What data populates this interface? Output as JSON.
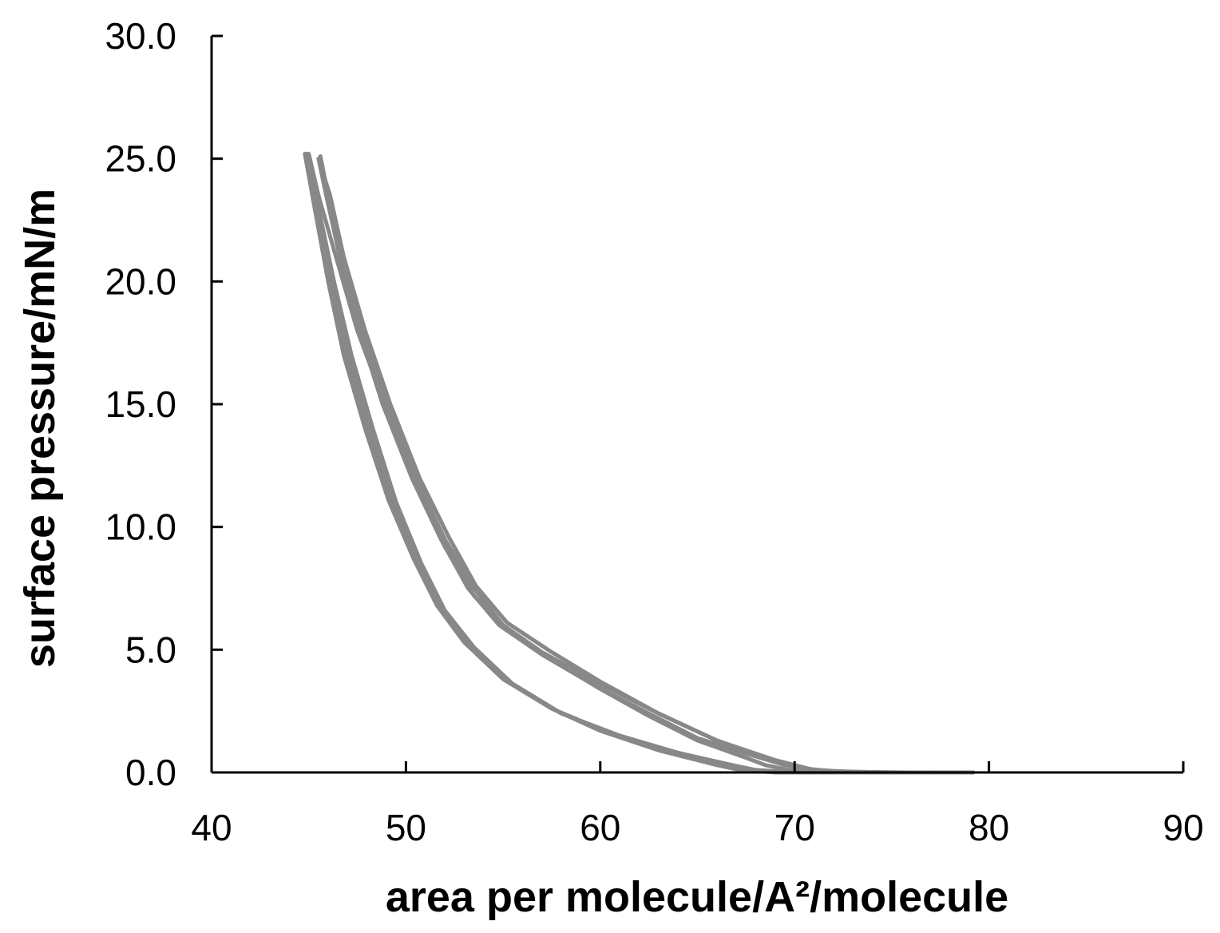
{
  "chart_data": {
    "type": "line",
    "title": "",
    "xlabel": "area per molecule/A²/molecule",
    "ylabel": "surface pressure/mN/m",
    "xlim": [
      40,
      90
    ],
    "ylim": [
      0,
      30
    ],
    "x_ticks": [
      40,
      50,
      60,
      70,
      80,
      90
    ],
    "y_ticks": [
      0,
      5,
      10,
      15,
      20,
      25,
      30
    ],
    "x_tick_labels": [
      "40",
      "50",
      "60",
      "70",
      "80",
      "90"
    ],
    "y_tick_labels": [
      "0.0",
      "5.0",
      "10.0",
      "15.0",
      "20.0",
      "25.0",
      "30.0"
    ],
    "grid": false,
    "legend": "none",
    "line_color": "#888888",
    "axis_color": "#000000",
    "series": [
      {
        "points": [
          [
            79.2,
            0
          ],
          [
            76,
            0
          ],
          [
            73,
            0.02
          ],
          [
            71,
            0.1
          ],
          [
            69,
            0.5
          ],
          [
            66,
            1.3
          ],
          [
            63,
            2.4
          ],
          [
            60,
            3.6
          ],
          [
            57,
            4.9
          ],
          [
            55,
            6
          ],
          [
            53.5,
            7.5
          ],
          [
            52,
            9.5
          ],
          [
            50.5,
            12
          ],
          [
            49,
            15
          ],
          [
            47.8,
            18
          ],
          [
            46.8,
            21
          ],
          [
            46,
            23.5
          ],
          [
            45.6,
            25.1
          ]
        ]
      },
      {
        "points": [
          [
            79,
            0
          ],
          [
            75,
            0
          ],
          [
            72,
            0.05
          ],
          [
            70,
            0.2
          ],
          [
            68.5,
            0.6
          ],
          [
            66,
            1.3
          ],
          [
            63,
            2.4
          ],
          [
            60,
            3.7
          ],
          [
            57.5,
            4.9
          ],
          [
            55.2,
            6.1
          ],
          [
            53.6,
            7.6
          ],
          [
            52.2,
            9.6
          ],
          [
            50.7,
            12
          ],
          [
            49.2,
            15
          ],
          [
            47.9,
            18
          ],
          [
            46.8,
            21
          ],
          [
            46.1,
            23.5
          ],
          [
            45.5,
            25
          ]
        ]
      },
      {
        "points": [
          [
            78.5,
            0
          ],
          [
            74,
            0
          ],
          [
            71.5,
            0.05
          ],
          [
            69.5,
            0.3
          ],
          [
            67.8,
            0.7
          ],
          [
            65,
            1.4
          ],
          [
            62.5,
            2.4
          ],
          [
            59.8,
            3.5
          ],
          [
            57,
            4.8
          ],
          [
            54.8,
            6
          ],
          [
            53.2,
            7.5
          ],
          [
            51.8,
            9.5
          ],
          [
            50.3,
            12
          ],
          [
            48.8,
            15
          ],
          [
            47.6,
            18
          ],
          [
            46.6,
            21
          ],
          [
            45.9,
            23.5
          ],
          [
            45.5,
            25
          ]
        ]
      },
      {
        "points": [
          [
            77,
            0
          ],
          [
            72,
            0
          ],
          [
            70,
            0.05
          ],
          [
            68.5,
            0.3
          ],
          [
            67.5,
            0.6
          ],
          [
            65,
            1.3
          ],
          [
            62.5,
            2.3
          ],
          [
            60,
            3.4
          ],
          [
            57.5,
            4.6
          ],
          [
            55.2,
            5.8
          ],
          [
            53.5,
            7.2
          ],
          [
            52,
            9.2
          ],
          [
            50.5,
            11.7
          ],
          [
            49,
            14.8
          ],
          [
            47.5,
            18
          ],
          [
            46.4,
            21
          ],
          [
            45.5,
            23.5
          ],
          [
            45.0,
            25.2
          ]
        ]
      },
      {
        "points": [
          [
            74,
            0
          ],
          [
            70,
            0
          ],
          [
            68,
            0.1
          ],
          [
            66.8,
            0.3
          ],
          [
            64,
            0.8
          ],
          [
            61,
            1.5
          ],
          [
            58,
            2.4
          ],
          [
            55.5,
            3.6
          ],
          [
            53.5,
            5.1
          ],
          [
            52,
            6.6
          ],
          [
            50.8,
            8.5
          ],
          [
            49.5,
            11
          ],
          [
            48.3,
            14
          ],
          [
            47.2,
            17
          ],
          [
            46.3,
            20
          ],
          [
            45.5,
            23
          ],
          [
            44.9,
            25.2
          ]
        ]
      },
      {
        "points": [
          [
            73,
            0
          ],
          [
            69.5,
            0
          ],
          [
            67.5,
            0.1
          ],
          [
            66.5,
            0.3
          ],
          [
            63.5,
            0.9
          ],
          [
            60.5,
            1.6
          ],
          [
            57.8,
            2.5
          ],
          [
            55.3,
            3.7
          ],
          [
            53.3,
            5.2
          ],
          [
            51.8,
            6.7
          ],
          [
            50.6,
            8.6
          ],
          [
            49.3,
            11
          ],
          [
            48.1,
            14
          ],
          [
            47,
            17
          ],
          [
            46.1,
            20
          ],
          [
            45.4,
            23
          ],
          [
            44.9,
            25.1
          ]
        ]
      },
      {
        "points": [
          [
            72,
            0
          ],
          [
            69,
            0
          ],
          [
            67.2,
            0.1
          ],
          [
            66,
            0.3
          ],
          [
            63,
            0.9
          ],
          [
            60,
            1.7
          ],
          [
            57.5,
            2.6
          ],
          [
            55,
            3.8
          ],
          [
            53,
            5.3
          ],
          [
            51.6,
            6.8
          ],
          [
            50.4,
            8.7
          ],
          [
            49.1,
            11.1
          ],
          [
            47.9,
            14
          ],
          [
            46.8,
            17
          ],
          [
            46,
            20
          ],
          [
            45.3,
            23
          ],
          [
            44.8,
            25.2
          ]
        ]
      }
    ]
  }
}
